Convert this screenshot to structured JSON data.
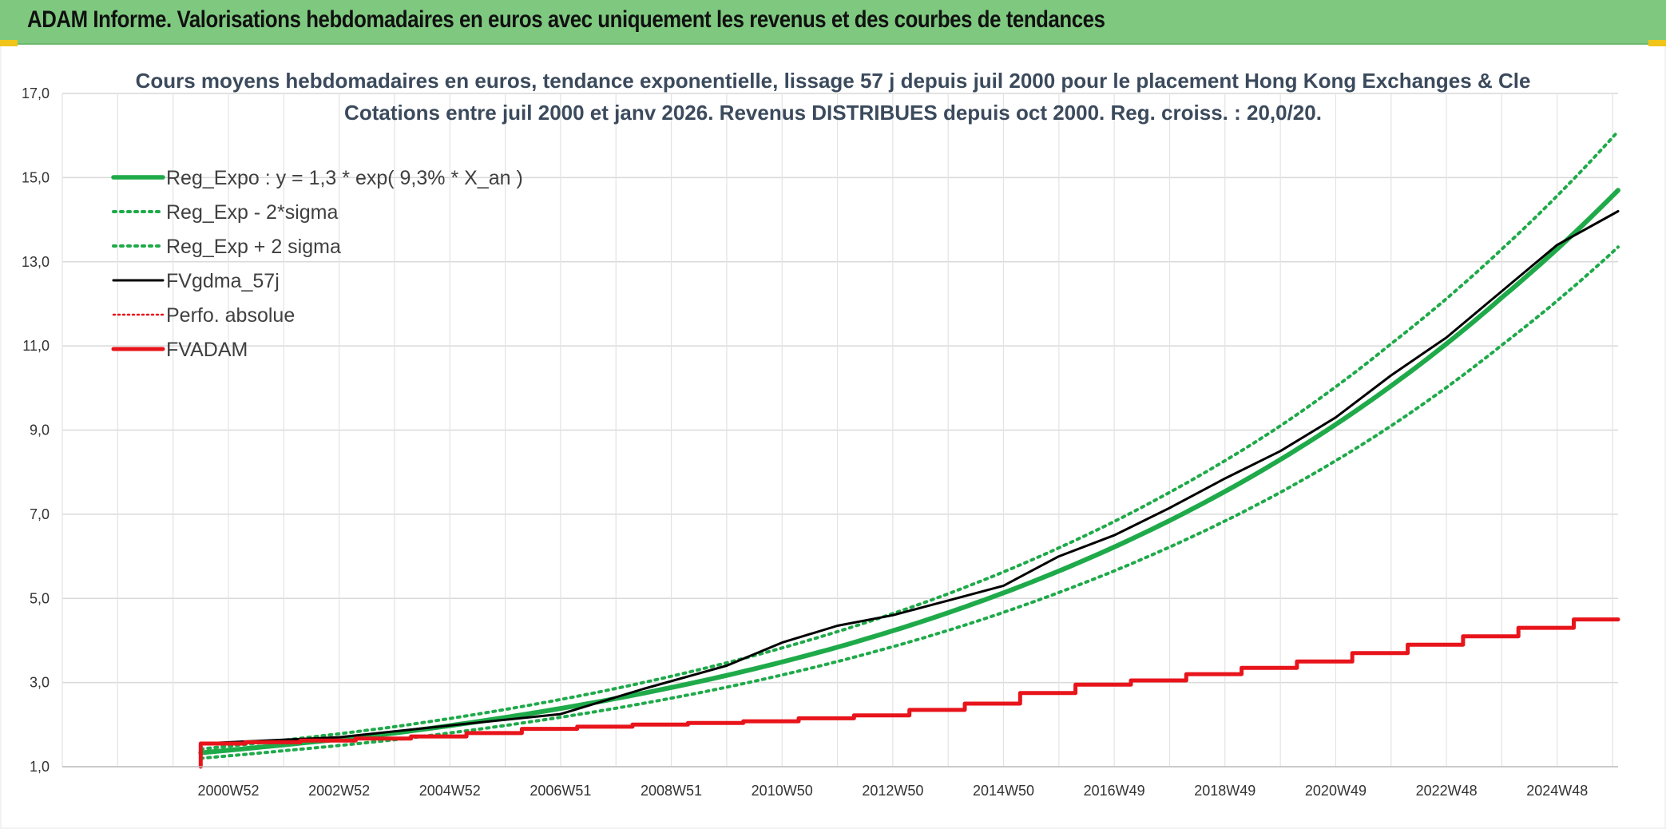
{
  "banner": {
    "title": "ADAM Informe. Valorisations hebdomadaires en euros avec uniquement les revenus et des courbes de tendances"
  },
  "colors": {
    "banner_bg": "#7ec97f",
    "trend_green": "#1faa4a",
    "fv_black": "#000000",
    "adam_red": "#e8141b",
    "corner_accent": "#f0c419"
  },
  "chart_data": {
    "type": "line",
    "title": [
      "Cours moyens hebdomadaires en euros, tendance exponentielle, lissage 57 j depuis juil 2000 pour le placement Hong Kong Exchanges & Cle",
      "Cotations entre juil 2000 et janv 2026. Revenus DISTRIBUES depuis oct 2000. Reg. croiss. : 20,0/20."
    ],
    "xlabel": "",
    "ylabel": "",
    "x_range": [
      1998.0,
      2026.1
    ],
    "x_data_start": 2000.5,
    "ylim": [
      1.0,
      17.0
    ],
    "y_ticks": [
      1.0,
      3.0,
      5.0,
      7.0,
      9.0,
      11.0,
      13.0,
      15.0,
      17.0
    ],
    "y_tick_labels": [
      "1,0",
      "3,0",
      "5,0",
      "7,0",
      "9,0",
      "11,0",
      "13,0",
      "15,0",
      "17,0"
    ],
    "x_tick_labels": [
      {
        "label": "2000W52",
        "x": 2001.0
      },
      {
        "label": "2002W52",
        "x": 2003.0
      },
      {
        "label": "2004W52",
        "x": 2005.0
      },
      {
        "label": "2006W51",
        "x": 2007.0
      },
      {
        "label": "2008W51",
        "x": 2009.0
      },
      {
        "label": "2010W50",
        "x": 2011.0
      },
      {
        "label": "2012W50",
        "x": 2013.0
      },
      {
        "label": "2014W50",
        "x": 2015.0
      },
      {
        "label": "2016W49",
        "x": 2017.0
      },
      {
        "label": "2018W49",
        "x": 2019.0
      },
      {
        "label": "2020W49",
        "x": 2021.0
      },
      {
        "label": "2022W48",
        "x": 2023.0
      },
      {
        "label": "2024W48",
        "x": 2025.0
      }
    ],
    "grid": true,
    "legend_position": "top-left",
    "series": [
      {
        "name": "Reg_Expo : y = 1,3 * exp( 9,3% *  X_an )",
        "style": "solid-thick",
        "color": "#1faa4a",
        "points": [
          [
            2000.5,
            1.33
          ],
          [
            2002,
            1.52
          ],
          [
            2004,
            1.8
          ],
          [
            2006,
            2.17
          ],
          [
            2008,
            2.62
          ],
          [
            2010,
            3.17
          ],
          [
            2012,
            3.84
          ],
          [
            2014,
            4.66
          ],
          [
            2016,
            5.65
          ],
          [
            2018,
            6.85
          ],
          [
            2020,
            8.3
          ],
          [
            2022,
            10.05
          ],
          [
            2024,
            12.15
          ],
          [
            2026.1,
            14.7
          ]
        ]
      },
      {
        "name": "Reg_Exp - 2*sigma",
        "style": "dotted",
        "color": "#1faa4a",
        "points": [
          [
            2000.5,
            1.2
          ],
          [
            2002,
            1.38
          ],
          [
            2004,
            1.64
          ],
          [
            2006,
            1.98
          ],
          [
            2008,
            2.39
          ],
          [
            2010,
            2.89
          ],
          [
            2012,
            3.5
          ],
          [
            2014,
            4.24
          ],
          [
            2016,
            5.14
          ],
          [
            2018,
            6.22
          ],
          [
            2020,
            7.52
          ],
          [
            2022,
            9.1
          ],
          [
            2024,
            11.02
          ],
          [
            2026.1,
            13.35
          ]
        ]
      },
      {
        "name": "Reg_Exp + 2 sigma",
        "style": "dotted",
        "color": "#1faa4a",
        "points": [
          [
            2000.5,
            1.42
          ],
          [
            2002,
            1.63
          ],
          [
            2004,
            1.95
          ],
          [
            2006,
            2.36
          ],
          [
            2008,
            2.86
          ],
          [
            2010,
            3.47
          ],
          [
            2012,
            4.21
          ],
          [
            2014,
            5.11
          ],
          [
            2016,
            6.2
          ],
          [
            2018,
            7.52
          ],
          [
            2020,
            9.1
          ],
          [
            2022,
            11.05
          ],
          [
            2024,
            13.3
          ],
          [
            2026.1,
            16.1
          ]
        ]
      },
      {
        "name": "FVgdma_57j",
        "style": "solid-thin",
        "color": "#000000",
        "points": [
          [
            2000.5,
            1.55
          ],
          [
            2003,
            1.7
          ],
          [
            2005,
            1.98
          ],
          [
            2007,
            2.25
          ],
          [
            2008.5,
            2.85
          ],
          [
            2010,
            3.4
          ],
          [
            2011,
            3.95
          ],
          [
            2012,
            4.35
          ],
          [
            2013,
            4.6
          ],
          [
            2014,
            4.95
          ],
          [
            2015,
            5.3
          ],
          [
            2016,
            6.0
          ],
          [
            2017,
            6.5
          ],
          [
            2018,
            7.15
          ],
          [
            2019,
            7.85
          ],
          [
            2020,
            8.5
          ],
          [
            2021,
            9.3
          ],
          [
            2022,
            10.3
          ],
          [
            2023,
            11.2
          ],
          [
            2024,
            12.3
          ],
          [
            2025,
            13.4
          ],
          [
            2026.1,
            14.2
          ]
        ]
      },
      {
        "name": "Perfo. absolue",
        "style": "dotted-thin",
        "color": "#e8141b",
        "points": []
      },
      {
        "name": "FVADAM",
        "style": "step",
        "color": "#e8141b",
        "points": [
          [
            2000.5,
            1.0
          ],
          [
            2000.5,
            1.55
          ],
          [
            2001.3,
            1.55
          ],
          [
            2001.3,
            1.58
          ],
          [
            2002.3,
            1.58
          ],
          [
            2002.3,
            1.62
          ],
          [
            2003.3,
            1.62
          ],
          [
            2003.3,
            1.67
          ],
          [
            2004.3,
            1.67
          ],
          [
            2004.3,
            1.72
          ],
          [
            2005.3,
            1.72
          ],
          [
            2005.3,
            1.8
          ],
          [
            2006.3,
            1.8
          ],
          [
            2006.3,
            1.9
          ],
          [
            2007.3,
            1.9
          ],
          [
            2007.3,
            1.95
          ],
          [
            2008.3,
            1.95
          ],
          [
            2008.3,
            2.0
          ],
          [
            2009.3,
            2.0
          ],
          [
            2009.3,
            2.04
          ],
          [
            2010.3,
            2.04
          ],
          [
            2010.3,
            2.08
          ],
          [
            2011.3,
            2.08
          ],
          [
            2011.3,
            2.15
          ],
          [
            2012.3,
            2.15
          ],
          [
            2012.3,
            2.22
          ],
          [
            2013.3,
            2.22
          ],
          [
            2013.3,
            2.35
          ],
          [
            2014.3,
            2.35
          ],
          [
            2014.3,
            2.5
          ],
          [
            2015.3,
            2.5
          ],
          [
            2015.3,
            2.75
          ],
          [
            2016.3,
            2.75
          ],
          [
            2016.3,
            2.95
          ],
          [
            2017.3,
            2.95
          ],
          [
            2017.3,
            3.05
          ],
          [
            2018.3,
            3.05
          ],
          [
            2018.3,
            3.2
          ],
          [
            2019.3,
            3.2
          ],
          [
            2019.3,
            3.35
          ],
          [
            2020.3,
            3.35
          ],
          [
            2020.3,
            3.5
          ],
          [
            2021.3,
            3.5
          ],
          [
            2021.3,
            3.7
          ],
          [
            2022.3,
            3.7
          ],
          [
            2022.3,
            3.9
          ],
          [
            2023.3,
            3.9
          ],
          [
            2023.3,
            4.1
          ],
          [
            2024.3,
            4.1
          ],
          [
            2024.3,
            4.3
          ],
          [
            2025.3,
            4.3
          ],
          [
            2025.3,
            4.5
          ],
          [
            2026.1,
            4.5
          ]
        ]
      }
    ]
  }
}
